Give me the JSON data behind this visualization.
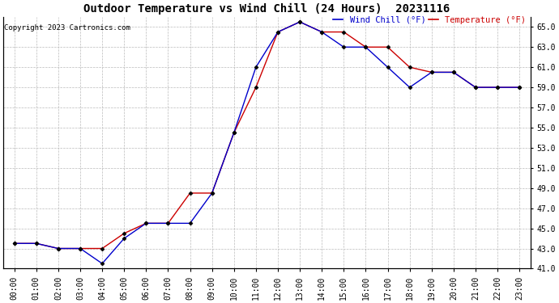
{
  "title": "Outdoor Temperature vs Wind Chill (24 Hours)  20231116",
  "copyright": "Copyright 2023 Cartronics.com",
  "legend_wind_chill": "Wind Chill (°F)",
  "legend_temperature": "Temperature (°F)",
  "x_labels": [
    "00:00",
    "01:00",
    "02:00",
    "03:00",
    "04:00",
    "05:00",
    "06:00",
    "07:00",
    "08:00",
    "09:00",
    "10:00",
    "11:00",
    "12:00",
    "13:00",
    "14:00",
    "15:00",
    "16:00",
    "17:00",
    "18:00",
    "19:00",
    "20:00",
    "21:00",
    "22:00",
    "23:00"
  ],
  "temperature": [
    43.5,
    43.5,
    43.0,
    43.0,
    43.0,
    44.5,
    45.5,
    45.5,
    48.5,
    48.5,
    54.5,
    59.0,
    64.5,
    65.5,
    64.5,
    64.5,
    63.0,
    63.0,
    61.0,
    60.5,
    60.5,
    59.0,
    59.0,
    59.0
  ],
  "wind_chill": [
    43.5,
    43.5,
    43.0,
    43.0,
    41.5,
    44.0,
    45.5,
    45.5,
    45.5,
    48.5,
    54.5,
    61.0,
    64.5,
    65.5,
    64.5,
    63.0,
    63.0,
    61.0,
    59.0,
    60.5,
    60.5,
    59.0,
    59.0,
    59.0
  ],
  "ylim": [
    41.0,
    66.0
  ],
  "yticks": [
    41.0,
    43.0,
    45.0,
    47.0,
    49.0,
    51.0,
    53.0,
    55.0,
    57.0,
    59.0,
    61.0,
    63.0,
    65.0
  ],
  "temp_color": "#cc0000",
  "wind_chill_color": "#0000cc",
  "bg_color": "#ffffff",
  "grid_color": "#bbbbbb",
  "title_fontsize": 10,
  "tick_fontsize": 7,
  "marker": "D",
  "marker_size": 2.5
}
